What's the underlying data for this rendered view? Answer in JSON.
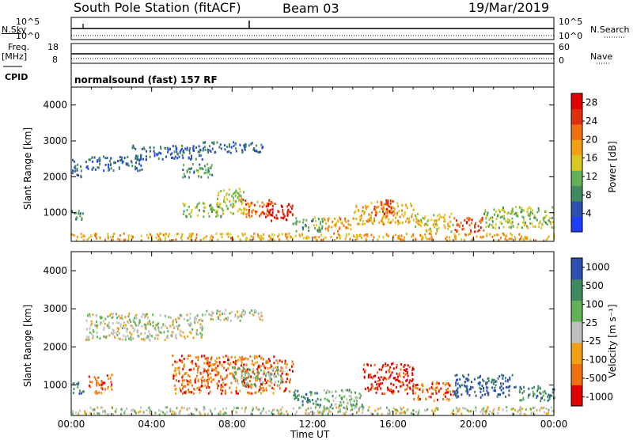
{
  "header": {
    "station": "South Pole Station (fitACF)",
    "beam": "Beam 03",
    "date": "19/Mar/2019"
  },
  "left_labels": {
    "nsky": "N.Sky",
    "nsky_top": "10^5",
    "nsky_bottom": "10^0",
    "freq": "Freq.",
    "freq_unit": "[MHz]",
    "freq_top": "18",
    "freq_bottom": "8",
    "cpid": "CPID"
  },
  "right_labels": {
    "nsearch": "N.Search",
    "nsearch_top": "10^5",
    "nsearch_bottom": "10^0",
    "nave": "Nave",
    "nave_top": "60",
    "nave_bottom": "0"
  },
  "program": "normalsound (fast) 157 RF",
  "colors": {
    "power": [
      "#1f3dff",
      "#2d4fb0",
      "#3f8a60",
      "#62b058",
      "#d8c820",
      "#f0a010",
      "#f07010",
      "#e03010",
      "#e00000"
    ],
    "velocity": [
      "#e00000",
      "#f07010",
      "#f0a010",
      "#c0c0c0",
      "#62b058",
      "#3f8a60",
      "#2d4fb0"
    ]
  },
  "chart_data": [
    {
      "type": "heatmap",
      "name": "power-panel",
      "ylabel": "Slant Range [km]",
      "yticks": [
        "1000",
        "2000",
        "3000",
        "4000"
      ],
      "ylim": [
        200,
        4500
      ],
      "xlim": [
        "00:00",
        "24:00"
      ],
      "colorbar": {
        "label": "Power [dB]",
        "ticks": [
          "4",
          "8",
          "12",
          "16",
          "20",
          "24",
          "28"
        ],
        "range": [
          0,
          30
        ]
      },
      "blobs": [
        {
          "t": [
            0.0,
            0.6
          ],
          "r": [
            800,
            1100
          ],
          "v": 8
        },
        {
          "t": [
            0.0,
            0.5
          ],
          "r": [
            2000,
            2500
          ],
          "v": 6
        },
        {
          "t": [
            0.7,
            3.5
          ],
          "r": [
            2200,
            2600
          ],
          "v": 6
        },
        {
          "t": [
            3.0,
            6.5
          ],
          "r": [
            2500,
            2900
          ],
          "v": 6
        },
        {
          "t": [
            6.5,
            9.5
          ],
          "r": [
            2700,
            3000
          ],
          "v": 6
        },
        {
          "t": [
            5.5,
            7.0
          ],
          "r": [
            2000,
            2400
          ],
          "v": 10
        },
        {
          "t": [
            5.5,
            7.5
          ],
          "r": [
            900,
            1300
          ],
          "v": 12
        },
        {
          "t": [
            7.2,
            8.6
          ],
          "r": [
            1000,
            1700
          ],
          "v": 14
        },
        {
          "t": [
            8.5,
            10.0
          ],
          "r": [
            900,
            1400
          ],
          "v": 22
        },
        {
          "t": [
            9.5,
            11.0
          ],
          "r": [
            800,
            1300
          ],
          "v": 27
        },
        {
          "t": [
            11.0,
            12.5
          ],
          "r": [
            500,
            900
          ],
          "v": 10
        },
        {
          "t": [
            12.5,
            14.0
          ],
          "r": [
            500,
            900
          ],
          "v": 20
        },
        {
          "t": [
            14.0,
            17.0
          ],
          "r": [
            700,
            1300
          ],
          "v": 18
        },
        {
          "t": [
            15.0,
            16.0
          ],
          "r": [
            900,
            1400
          ],
          "v": 23
        },
        {
          "t": [
            17.0,
            19.0
          ],
          "r": [
            500,
            1000
          ],
          "v": 16
        },
        {
          "t": [
            19.0,
            20.5
          ],
          "r": [
            500,
            900
          ],
          "v": 24
        },
        {
          "t": [
            20.5,
            24.0
          ],
          "r": [
            600,
            1200
          ],
          "v": 13
        },
        {
          "t": [
            0.0,
            24.0
          ],
          "r": [
            250,
            450
          ],
          "v": 18
        }
      ]
    },
    {
      "type": "heatmap",
      "name": "velocity-panel",
      "xlabel": "Time UT",
      "ylabel": "Slant Range [km]",
      "yticks": [
        "1000",
        "2000",
        "3000",
        "4000"
      ],
      "ylim": [
        200,
        4500
      ],
      "xticks": [
        "00:00",
        "04:00",
        "08:00",
        "12:00",
        "16:00",
        "20:00",
        "00:00"
      ],
      "xlim": [
        "00:00",
        "24:00"
      ],
      "colorbar": {
        "label": "Velocity [m s⁻¹]",
        "ticks": [
          "-1000",
          "-500",
          "-100",
          "-25",
          "25",
          "100",
          "500",
          "1000"
        ]
      },
      "blobs": [
        {
          "t": [
            0.0,
            0.6
          ],
          "r": [
            800,
            1100
          ],
          "v": 5
        },
        {
          "t": [
            0.8,
            2.0
          ],
          "r": [
            800,
            1300
          ],
          "v": 1
        },
        {
          "t": [
            0.7,
            6.5
          ],
          "r": [
            2200,
            2900
          ],
          "v": 3
        },
        {
          "t": [
            6.5,
            9.5
          ],
          "r": [
            2700,
            3000
          ],
          "v": 3
        },
        {
          "t": [
            5.0,
            11.0
          ],
          "r": [
            800,
            1800
          ],
          "v": 1
        },
        {
          "t": [
            8.0,
            10.5
          ],
          "r": [
            1000,
            1500
          ],
          "v": 4
        },
        {
          "t": [
            11.0,
            12.5
          ],
          "r": [
            500,
            900
          ],
          "v": 5
        },
        {
          "t": [
            12.5,
            14.5
          ],
          "r": [
            400,
            900
          ],
          "v": 4
        },
        {
          "t": [
            14.5,
            17.0
          ],
          "r": [
            800,
            1600
          ],
          "v": 0
        },
        {
          "t": [
            17.0,
            19.0
          ],
          "r": [
            600,
            1100
          ],
          "v": 1
        },
        {
          "t": [
            19.0,
            22.0
          ],
          "r": [
            700,
            1300
          ],
          "v": 6
        },
        {
          "t": [
            22.0,
            24.0
          ],
          "r": [
            600,
            1000
          ],
          "v": 5
        },
        {
          "t": [
            0.0,
            24.0
          ],
          "r": [
            250,
            450
          ],
          "v": 3
        }
      ]
    }
  ]
}
